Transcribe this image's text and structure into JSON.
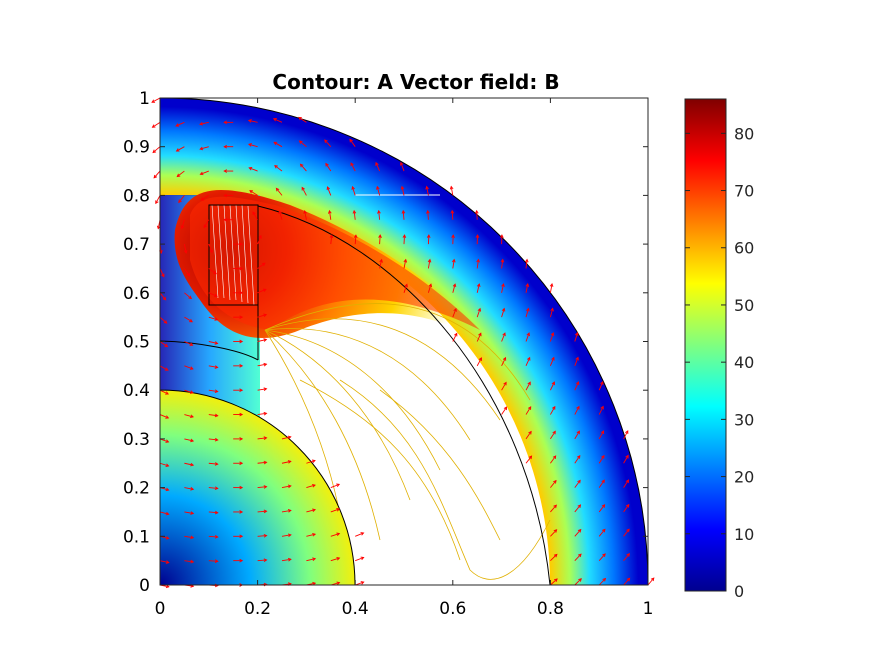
{
  "chart_data": {
    "type": "contour",
    "title": "Contour: A  Vector field: B",
    "xlabel": "",
    "ylabel": "",
    "xlim": [
      0,
      1
    ],
    "ylim": [
      0,
      1
    ],
    "xticks": [
      "0",
      "0.2",
      "0.4",
      "0.6",
      "0.8",
      "1"
    ],
    "yticks": [
      "0",
      "0.1",
      "0.2",
      "0.3",
      "0.4",
      "0.5",
      "0.6",
      "0.7",
      "0.8",
      "0.9",
      "1"
    ],
    "colorbar": {
      "colormap": "jet",
      "range": [
        0,
        86
      ],
      "ticks": [
        "0",
        "10",
        "20",
        "30",
        "40",
        "50",
        "60",
        "70",
        "80"
      ]
    },
    "geometry": {
      "inner_arc_radius": 0.4,
      "middle_arc_radius": 0.8,
      "outer_arc_radius": 1.0,
      "small_arc_radius": 0.5,
      "coil_x": [
        0.1,
        0.2
      ],
      "coil_y": [
        0.6,
        0.78
      ],
      "coil_outer_x": 0.2,
      "coil_outer_y": [
        0.46,
        0.76
      ]
    },
    "contour_peak": {
      "x": 0.15,
      "y": 0.72,
      "value": 86
    },
    "vector_color": "#ff0000",
    "grid": false
  }
}
